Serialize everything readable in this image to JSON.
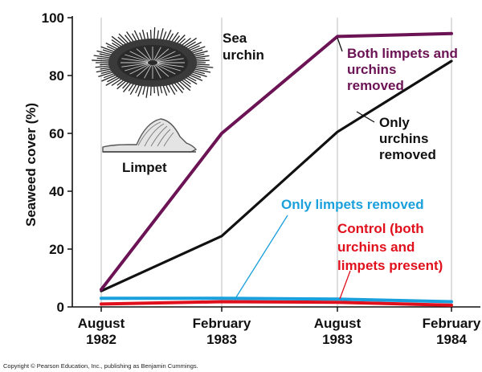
{
  "chart_data": {
    "type": "line",
    "title": "",
    "xlabel": "",
    "ylabel": "Seaweed cover (%)",
    "ylim": [
      0,
      100
    ],
    "yticks": [
      0,
      20,
      40,
      60,
      80,
      100
    ],
    "categories": [
      [
        "August",
        "1982"
      ],
      [
        "February",
        "1983"
      ],
      [
        "August",
        "1983"
      ],
      [
        "February",
        "1984"
      ]
    ],
    "series": [
      {
        "name": "Both limpets and urchins removed",
        "label_lines": [
          "Both limpets and",
          "urchins",
          "removed"
        ],
        "color": "#6b1354",
        "values": [
          6,
          60,
          93.5,
          94.5
        ]
      },
      {
        "name": "Only urchins removed",
        "label_lines": [
          "Only",
          "urchins",
          "removed"
        ],
        "color": "#111111",
        "values": [
          5.5,
          24.5,
          60.5,
          85
        ]
      },
      {
        "name": "Only limpets removed",
        "label_lines": [
          "Only limpets removed"
        ],
        "color": "#1aa0dc",
        "values": [
          3,
          3,
          2.7,
          1.8
        ]
      },
      {
        "name": "Control (both urchins and limpets present)",
        "label_lines": [
          "Control (both",
          "urchins and",
          "limpets present)"
        ],
        "color": "#e0101c",
        "values": [
          1,
          1.8,
          1.6,
          0.6
        ]
      }
    ],
    "grid": true,
    "illustration_labels": {
      "urchin": [
        "Sea",
        "urchin"
      ],
      "limpet": [
        "Limpet"
      ]
    }
  },
  "footer": {
    "copyright": "Copyright © Pearson Education, Inc., publishing as Benjamin Cummings."
  }
}
